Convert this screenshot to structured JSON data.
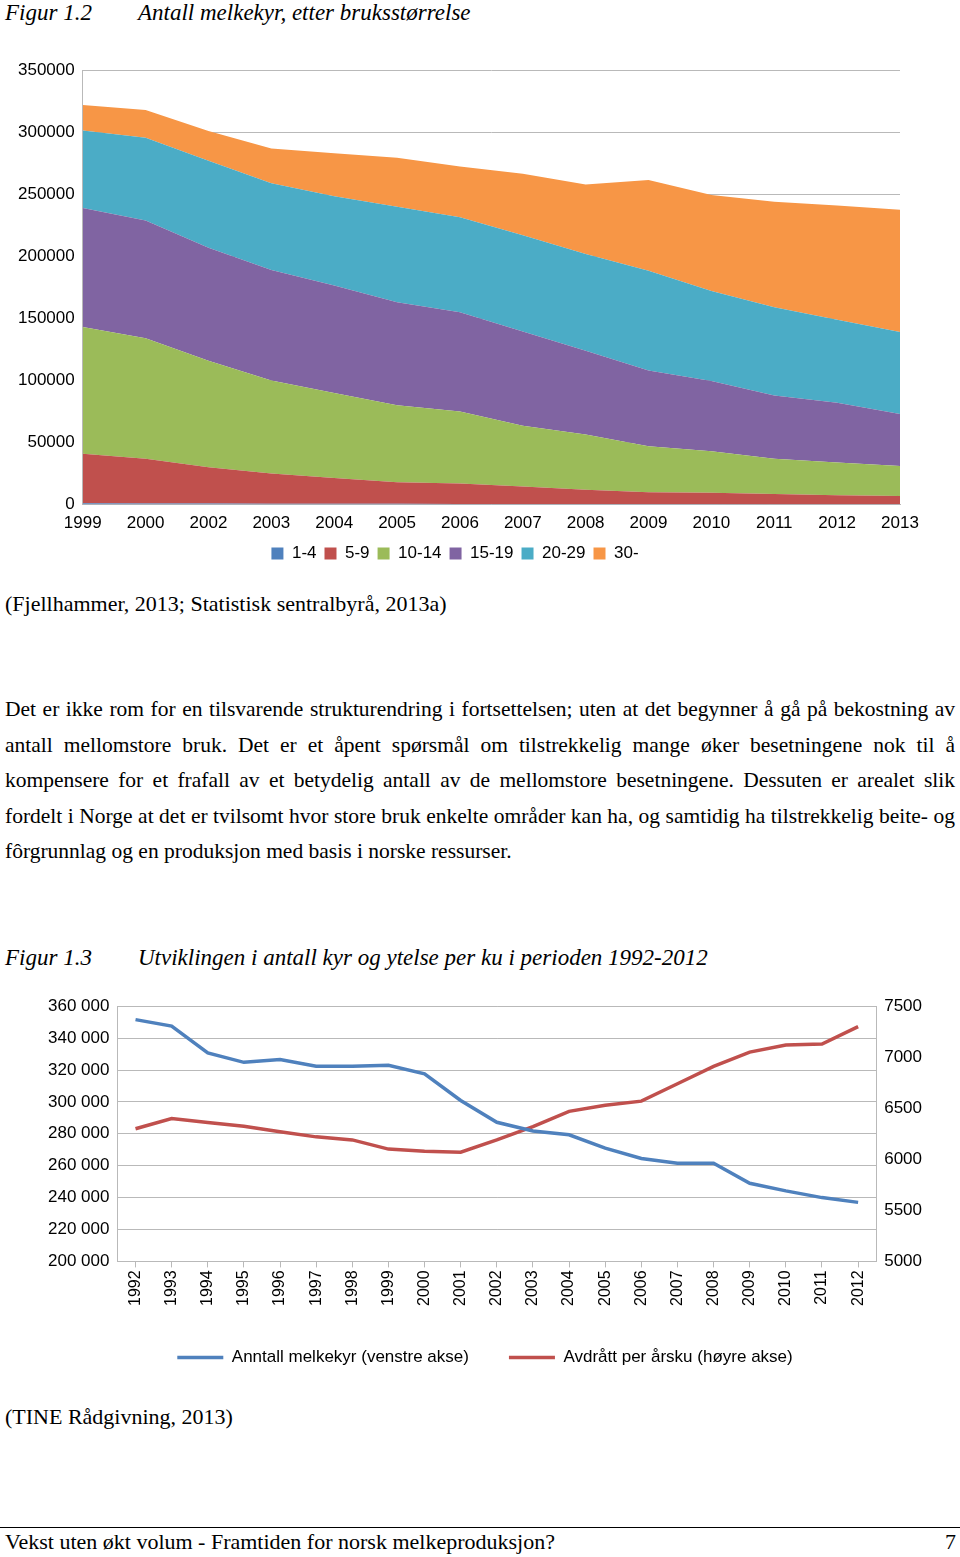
{
  "document": {
    "figures": [
      {
        "label": "Figur 1.2",
        "caption": "Antall melkekyr, etter bruksstørrelse",
        "source": "(Fjellhammer, 2013; Statistisk sentralbyrå, 2013a)"
      },
      {
        "label": "Figur 1.3",
        "caption": "Utviklingen i antall kyr og ytelse per ku i perioden 1992-2012",
        "source": "(TINE Rådgivning, 2013)"
      }
    ],
    "paragraph": "Det er ikke rom for en tilsvarende strukturendring i fortsettelsen; uten at det begynner å gå på bekostning av antall mellomstore bruk. Det er et åpent spørsmål om tilstrekkelig mange øker besetningene nok til å kompensere for et frafall av et betydelig antall av de mellomstore besetningene. Dessuten er arealet slik fordelt i Norge at det er tvilsomt hvor store bruk enkelte områder kan ha, og samtidig ha tilstrekkelig beite- og fôrgrunnlag og en produksjon med basis i norske ressurser.",
    "footer": {
      "title": "Vekst uten økt volum - Framtiden for norsk melkeproduksjon?",
      "page": 7
    }
  },
  "chart_data": [
    {
      "type": "area",
      "stacked": true,
      "grid": true,
      "legend": "bottom",
      "categories": [
        "1999",
        "2000",
        "2002",
        "2003",
        "2004",
        "2005",
        "2006",
        "2007",
        "2008",
        "2009",
        "2010",
        "2011",
        "2012",
        "2013"
      ],
      "ylim": [
        0,
        350000
      ],
      "yticks": [
        0,
        50000,
        100000,
        150000,
        200000,
        250000,
        300000,
        350000
      ],
      "series": [
        {
          "name": "1-4",
          "color": "#4f81bd",
          "values": [
            1000,
            900,
            800,
            700,
            600,
            600,
            500,
            500,
            400,
            400,
            400,
            300,
            300,
            300
          ]
        },
        {
          "name": "5-9",
          "color": "#c0504d",
          "values": [
            40000,
            36100,
            29200,
            24300,
            20900,
            17400,
            16500,
            14000,
            11600,
            9600,
            9100,
            8200,
            7200,
            6700
          ]
        },
        {
          "name": "10-14",
          "color": "#9bbb59",
          "values": [
            102000,
            97000,
            86000,
            75000,
            68500,
            62000,
            58000,
            49000,
            44500,
            37000,
            33500,
            28500,
            26500,
            24000
          ]
        },
        {
          "name": "15-19",
          "color": "#8064a2",
          "values": [
            96000,
            95000,
            91000,
            89000,
            86500,
            83000,
            80000,
            76000,
            67500,
            61000,
            56500,
            51000,
            48000,
            42000
          ]
        },
        {
          "name": "20-29",
          "color": "#4bacc6",
          "values": [
            62500,
            66500,
            70000,
            70000,
            72000,
            77000,
            76500,
            77500,
            78000,
            80500,
            72500,
            71000,
            67000,
            66000
          ]
        },
        {
          "name": "30-",
          "color": "#f79646",
          "values": [
            20500,
            22500,
            24000,
            28000,
            34500,
            39500,
            41000,
            49500,
            56000,
            73000,
            77500,
            85000,
            92000,
            98500
          ]
        }
      ]
    },
    {
      "type": "line",
      "grid": true,
      "legend": "bottom",
      "categories": [
        "1992",
        "1993",
        "1994",
        "1995",
        "1996",
        "1997",
        "1998",
        "1999",
        "2000",
        "2001",
        "2002",
        "2003",
        "2004",
        "2005",
        "2006",
        "2007",
        "2008",
        "2009",
        "2010",
        "2011",
        "2012"
      ],
      "ylim": [
        200000,
        360000
      ],
      "yticks": [
        {
          "value": 200000,
          "label": "200 000"
        },
        {
          "value": 220000,
          "label": "220 000"
        },
        {
          "value": 240000,
          "label": "240 000"
        },
        {
          "value": 260000,
          "label": "260 000"
        },
        {
          "value": 280000,
          "label": "280 000"
        },
        {
          "value": 300000,
          "label": "300 000"
        },
        {
          "value": 320000,
          "label": "320 000"
        },
        {
          "value": 340000,
          "label": "340 000"
        },
        {
          "value": 360000,
          "label": "360 000"
        }
      ],
      "y2lim": [
        5000,
        7500
      ],
      "y2ticks": [
        5000,
        5500,
        6000,
        6500,
        7000,
        7500
      ],
      "series": [
        {
          "name": "Anntall melkekyr (venstre akse)",
          "color": "#4f81bd",
          "values": [
            351600,
            347500,
            330700,
            324800,
            326600,
            322400,
            322400,
            323000,
            317600,
            300900,
            287200,
            281800,
            279400,
            271000,
            264500,
            261500,
            261500,
            249000,
            244200,
            240000,
            237000
          ]
        },
        {
          "name": "Avdrått per årsku (høyre akse)",
          "color": "#c0504d",
          "axis": "y2",
          "values": [
            6300,
            6400,
            6360,
            6325,
            6270,
            6220,
            6190,
            6100,
            6080,
            6070,
            6190,
            6320,
            6470,
            6530,
            6570,
            6740,
            6910,
            7050,
            7120,
            7130,
            7300
          ]
        }
      ]
    }
  ]
}
